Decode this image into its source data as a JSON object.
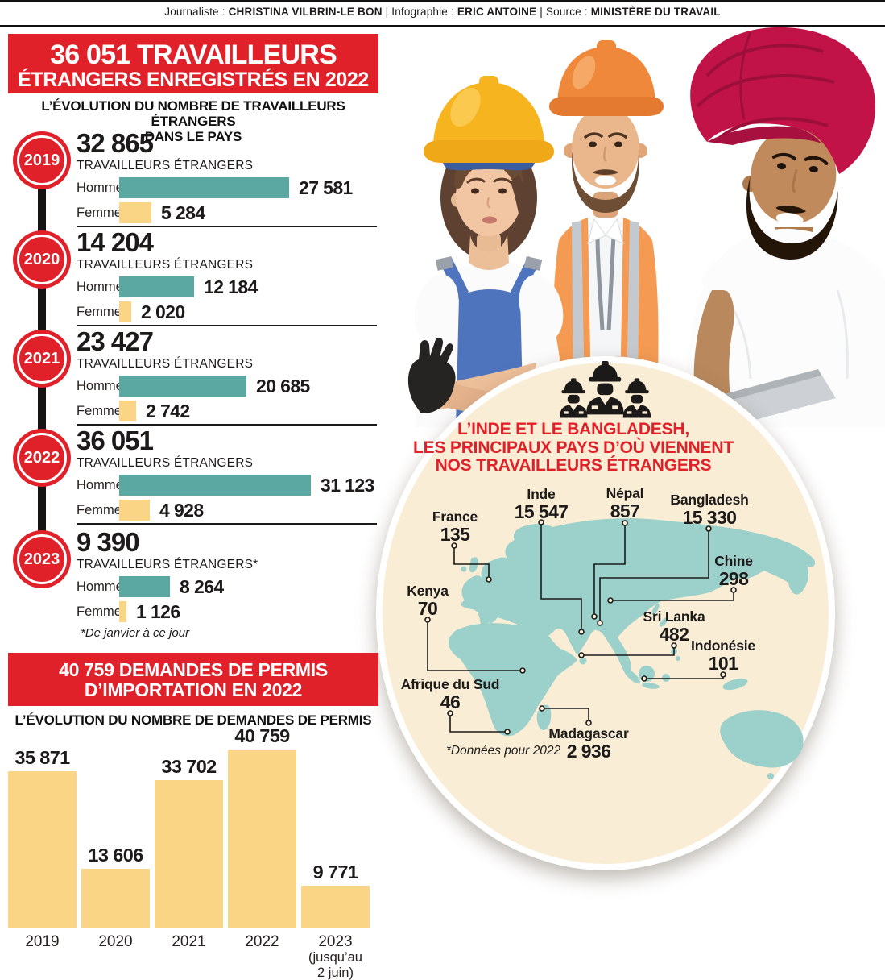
{
  "colors": {
    "red": "#E0212A",
    "teal": "#5AA8A1",
    "yellow": "#FBD586",
    "cream": "#FAEDD5",
    "map_teal": "#9CD1CB",
    "black": "#1C1B1A"
  },
  "header": {
    "separator": "|",
    "items": [
      {
        "label": "Journaliste : ",
        "name": "CHRISTINA VILBRIN-LE BON"
      },
      {
        "label": "Infographie : ",
        "name": "ERIC ANTOINE"
      },
      {
        "label": "Source : ",
        "name": "MINISTÈRE DU TRAVAIL"
      }
    ]
  },
  "banner": {
    "line1": "36 051 TRAVAILLEURS",
    "line2": "ÉTRANGERS ENREGISTRÉS EN 2022"
  },
  "timeline": {
    "subtitle_line1": "L’ÉVOLUTION DU NOMBRE DE TRAVAILLEURS ÉTRANGERS",
    "subtitle_line2": "DANS LE PAYS",
    "homme_label": "Homme",
    "femme_label": "Femme",
    "years": [
      {
        "year": "2019",
        "total": "32 865",
        "unit": "TRAVAILLEURS ÉTRANGERS",
        "homme_value": "27 581",
        "homme_num": 27581,
        "femme_value": "5 284",
        "femme_num": 5284
      },
      {
        "year": "2020",
        "total": "14 204",
        "unit": "TRAVAILLEURS ÉTRANGERS",
        "homme_value": "12 184",
        "homme_num": 12184,
        "femme_value": "2 020",
        "femme_num": 2020
      },
      {
        "year": "2021",
        "total": "23 427",
        "unit": "TRAVAILLEURS ÉTRANGERS",
        "homme_value": "20 685",
        "homme_num": 20685,
        "femme_value": "2 742",
        "femme_num": 2742
      },
      {
        "year": "2022",
        "total": "36 051",
        "unit": "TRAVAILLEURS ÉTRANGERS",
        "homme_value": "31 123",
        "homme_num": 31123,
        "femme_value": "4 928",
        "femme_num": 4928
      },
      {
        "year": "2023",
        "total": "9 390",
        "unit": "TRAVAILLEURS ÉTRANGERS*",
        "homme_value": "8 264",
        "homme_num": 8264,
        "femme_value": "1 126",
        "femme_num": 1126,
        "footnote": "*De janvier à ce jour"
      }
    ]
  },
  "permits": {
    "banner_line1": "40 759 DEMANDES DE PERMIS",
    "banner_line2": "D’IMPORTATION EN 2022",
    "subtitle": "L’ÉVOLUTION DU NOMBRE DE DEMANDES DE PERMIS",
    "bars": [
      {
        "year_lines": [
          "2019"
        ],
        "value": "35 871",
        "num": 35871
      },
      {
        "year_lines": [
          "2020"
        ],
        "value": "13 606",
        "num": 13606
      },
      {
        "year_lines": [
          "2021"
        ],
        "value": "33 702",
        "num": 33702
      },
      {
        "year_lines": [
          "2022"
        ],
        "value": "40 759",
        "num": 40759
      },
      {
        "year_lines": [
          "2023",
          "(jusqu’au",
          "2 juin)"
        ],
        "value": "9 771",
        "num": 9771
      }
    ]
  },
  "map_circle": {
    "title_line1": "L’INDE ET LE BANGLADESH,",
    "title_line2": "LES PRINCIPAUX PAYS D’OÙ VIENNENT",
    "title_line3": "NOS TRAVAILLEURS ÉTRANGERS",
    "note": "*Données pour 2022",
    "countries": [
      {
        "name": "France",
        "value": "135"
      },
      {
        "name": "Inde",
        "value": "15 547"
      },
      {
        "name": "Népal",
        "value": "857"
      },
      {
        "name": "Bangladesh",
        "value": "15 330"
      },
      {
        "name": "Chine",
        "value": "298"
      },
      {
        "name": "Kenya",
        "value": "70"
      },
      {
        "name": "Sri Lanka",
        "value": "482"
      },
      {
        "name": "Indonésie",
        "value": "101"
      },
      {
        "name": "Afrique du Sud",
        "value": "46"
      },
      {
        "name": "Madagascar",
        "value": "2 936"
      }
    ]
  },
  "chart_data": [
    {
      "type": "bar",
      "orientation": "horizontal",
      "title": "L’ÉVOLUTION DU NOMBRE DE TRAVAILLEURS ÉTRANGERS DANS LE PAYS",
      "categories": [
        "2019",
        "2020",
        "2021",
        "2022",
        "2023"
      ],
      "series": [
        {
          "name": "Homme",
          "color": "#5AA8A1",
          "values": [
            27581,
            12184,
            20685,
            31123,
            8264
          ]
        },
        {
          "name": "Femme",
          "color": "#FBD586",
          "values": [
            5284,
            2020,
            2742,
            4928,
            1126
          ]
        }
      ],
      "totals": [
        32865,
        14204,
        23427,
        36051,
        9390
      ],
      "xlim": [
        0,
        31123
      ],
      "note": "*De janvier à ce jour (2023)"
    },
    {
      "type": "bar",
      "title": "L’ÉVOLUTION DU NOMBRE DE DEMANDES DE PERMIS",
      "categories": [
        "2019",
        "2020",
        "2021",
        "2022",
        "2023 (jusqu’au 2 juin)"
      ],
      "values": [
        35871,
        13606,
        33702,
        40759,
        9771
      ],
      "color": "#FBD586",
      "ylim": [
        0,
        40759
      ]
    },
    {
      "type": "map",
      "title": "L’INDE ET LE BANGLADESH, LES PRINCIPAUX PAYS D’OÙ VIENNENT NOS TRAVAILLEURS ÉTRANGERS",
      "note": "*Données pour 2022",
      "points": [
        {
          "country": "France",
          "value": 135
        },
        {
          "country": "Inde",
          "value": 15547
        },
        {
          "country": "Népal",
          "value": 857
        },
        {
          "country": "Bangladesh",
          "value": 15330
        },
        {
          "country": "Chine",
          "value": 298
        },
        {
          "country": "Kenya",
          "value": 70
        },
        {
          "country": "Sri Lanka",
          "value": 482
        },
        {
          "country": "Indonésie",
          "value": 101
        },
        {
          "country": "Afrique du Sud",
          "value": 46
        },
        {
          "country": "Madagascar",
          "value": 2936
        }
      ]
    }
  ]
}
